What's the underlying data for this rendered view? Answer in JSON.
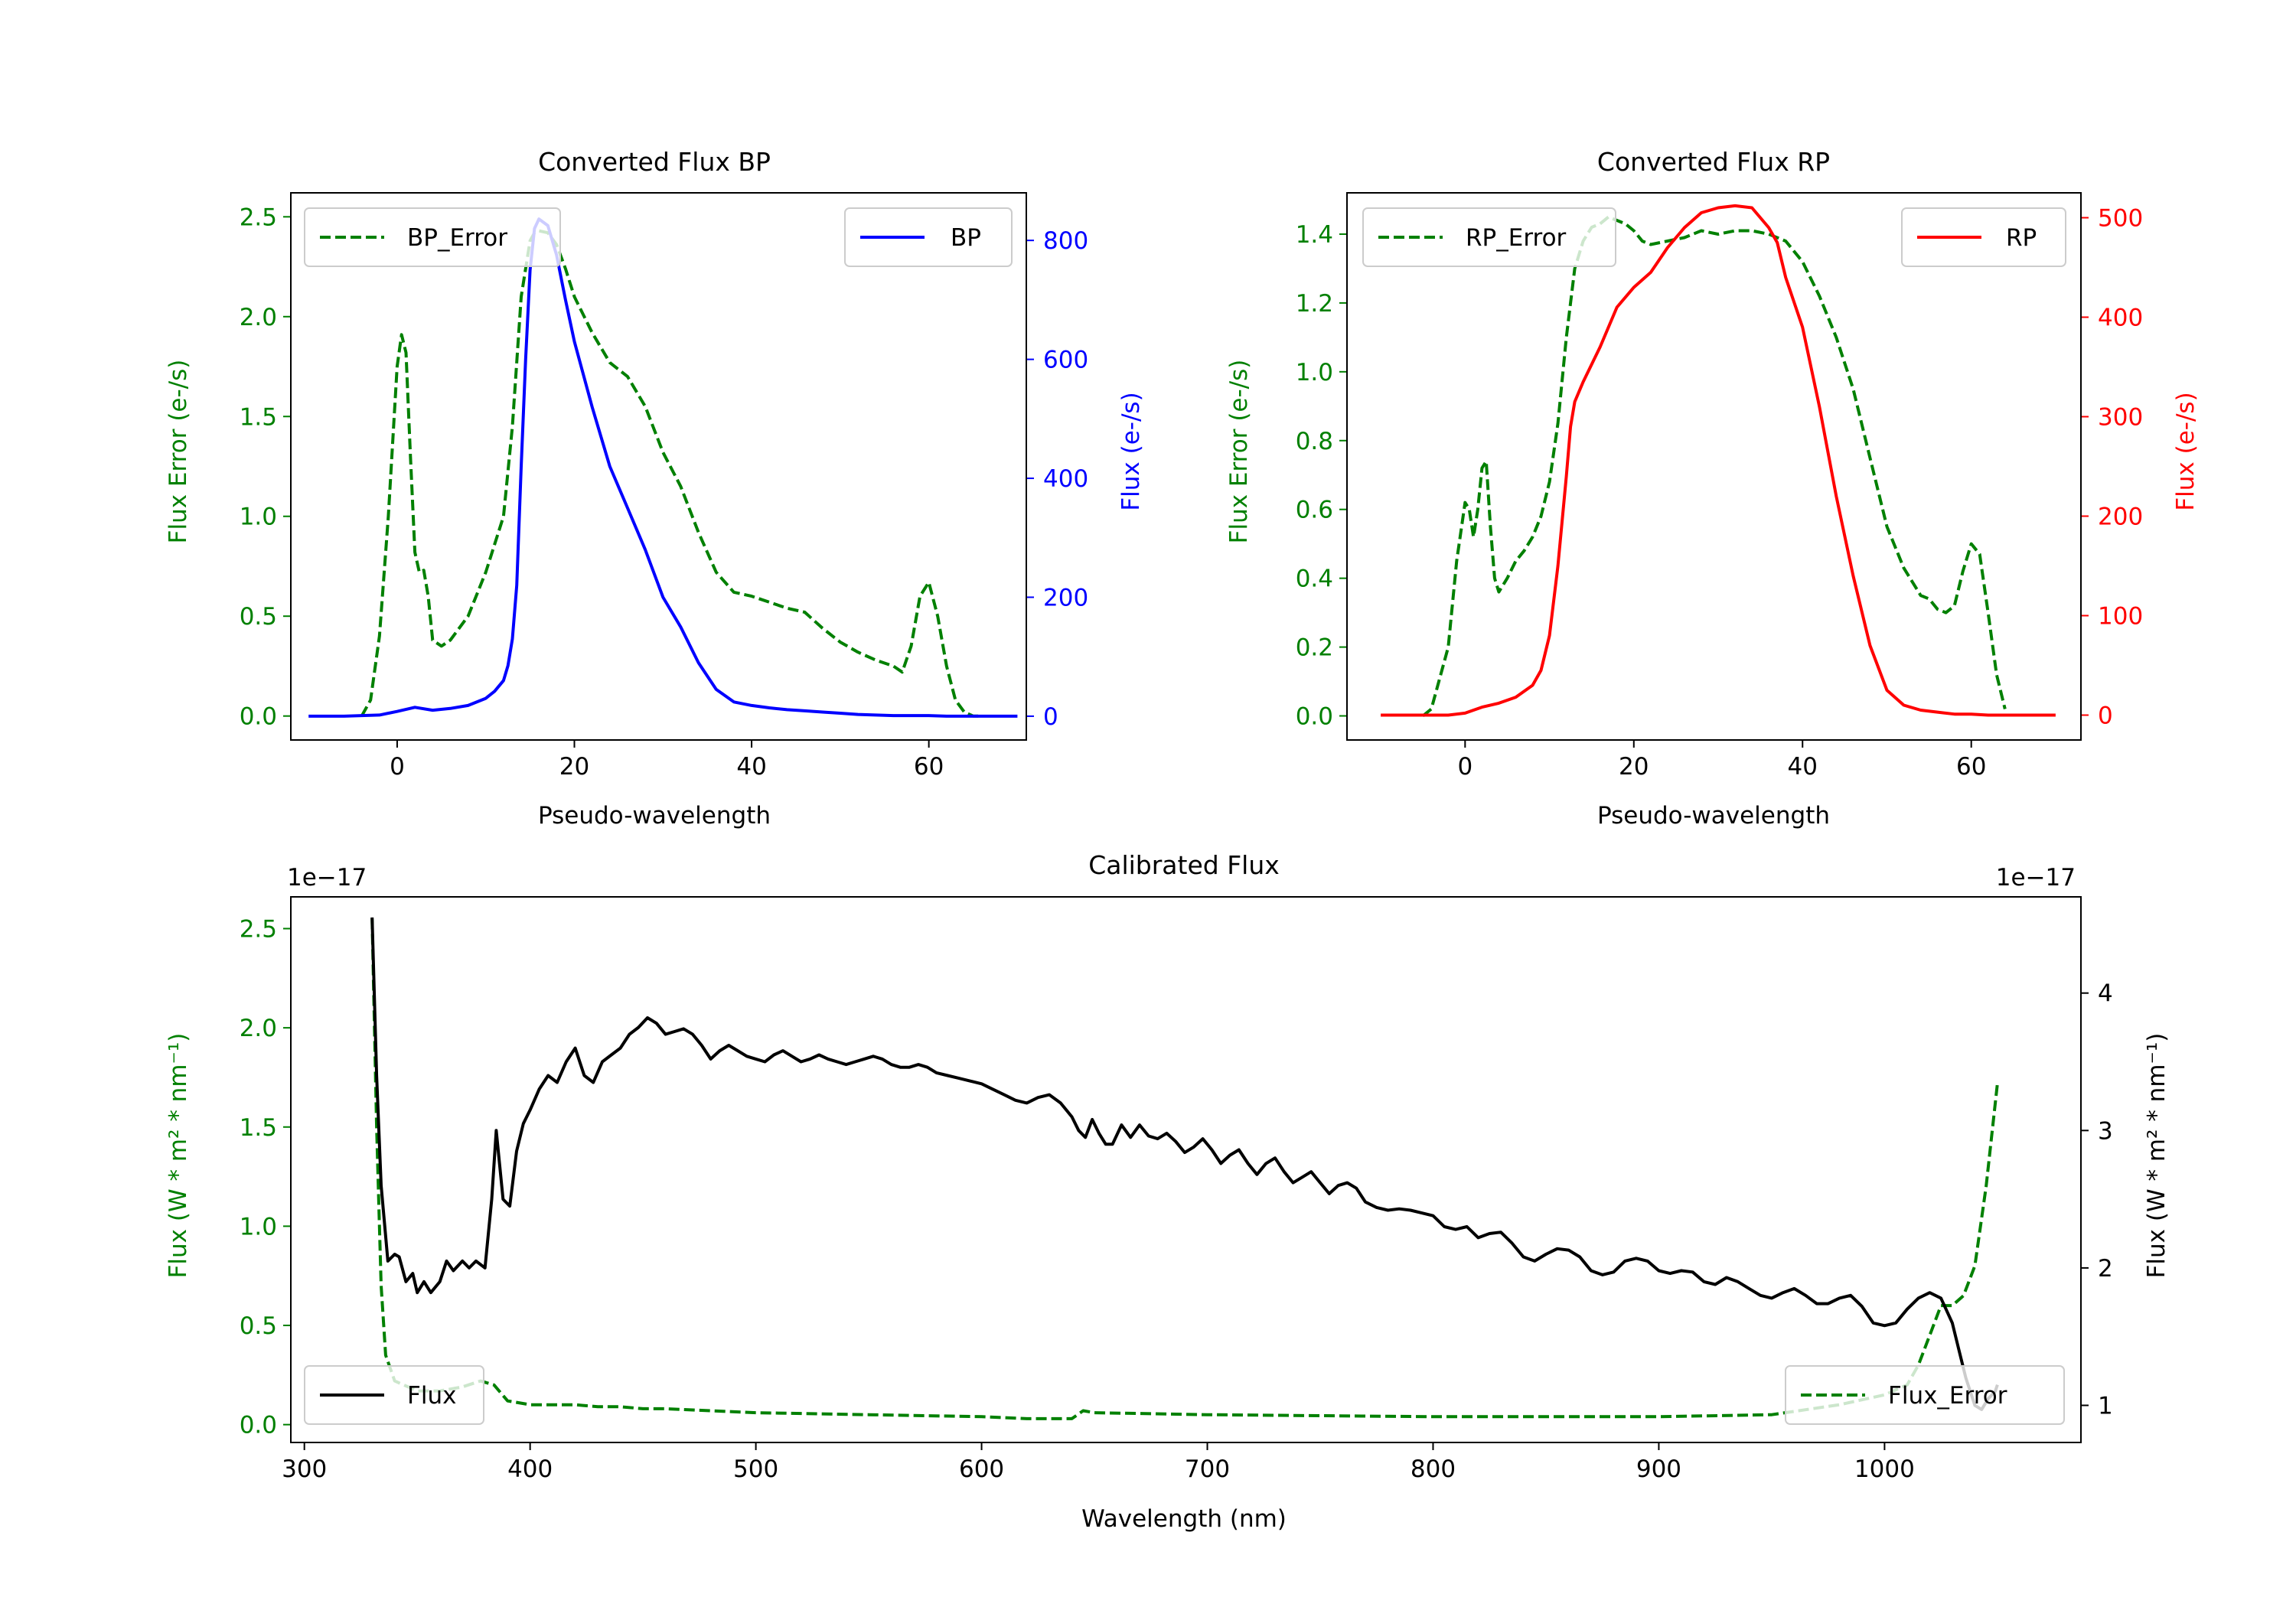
{
  "colors": {
    "bp": "#0000ff",
    "rp": "#ff0000",
    "error": "#008000",
    "flux": "#000000",
    "axis": "#000000"
  },
  "chart_data": [
    {
      "id": "bp",
      "type": "line",
      "title": "Converted Flux BP",
      "xlabel": "Pseudo-wavelength",
      "ylabel_left": "Flux Error (e-/s)",
      "ylabel_right": "Flux (e-/s)",
      "xlim": [
        -12,
        71
      ],
      "ylim_left": [
        -0.12,
        2.62
      ],
      "ylim_right": [
        -40,
        880
      ],
      "xticks": [
        0,
        20,
        40,
        60
      ],
      "xtick_labels": [
        "0",
        "20",
        "40",
        "60"
      ],
      "yticks_left": [
        0.0,
        0.5,
        1.0,
        1.5,
        2.0,
        2.5
      ],
      "ytick_labels_left": [
        "0.0",
        "0.5",
        "1.0",
        "1.5",
        "2.0",
        "2.5"
      ],
      "yticks_right": [
        0,
        200,
        400,
        600,
        800
      ],
      "ytick_labels_right": [
        "0",
        "200",
        "400",
        "600",
        "800"
      ],
      "left_color": "#008000",
      "right_color": "#0000ff",
      "series": [
        {
          "name": "BP_Error",
          "axis": "left",
          "style": "dashed",
          "color": "#008000",
          "legend": "upper-left",
          "x": [
            -4,
            -3,
            -2,
            -1,
            0,
            0.5,
            1,
            1.5,
            2,
            2.5,
            3,
            3.5,
            4,
            5,
            6,
            8,
            10,
            12,
            13,
            14,
            15,
            15.5,
            16,
            17,
            18,
            19,
            20,
            22,
            24,
            26,
            28,
            30,
            32,
            34,
            36,
            38,
            40,
            42,
            44,
            46,
            48,
            50,
            52,
            54,
            56,
            57,
            58,
            59,
            60,
            61,
            62,
            63,
            64,
            65,
            66
          ],
          "values": [
            0.0,
            0.08,
            0.4,
            1.0,
            1.75,
            1.91,
            1.82,
            1.3,
            0.82,
            0.72,
            0.73,
            0.6,
            0.38,
            0.35,
            0.38,
            0.5,
            0.72,
            1.0,
            1.45,
            2.1,
            2.38,
            2.42,
            2.43,
            2.42,
            2.36,
            2.24,
            2.1,
            1.92,
            1.77,
            1.7,
            1.55,
            1.32,
            1.15,
            0.92,
            0.72,
            0.62,
            0.6,
            0.57,
            0.54,
            0.52,
            0.44,
            0.37,
            0.32,
            0.28,
            0.25,
            0.22,
            0.35,
            0.6,
            0.67,
            0.5,
            0.25,
            0.08,
            0.02,
            0.0,
            0.0
          ]
        },
        {
          "name": "BP",
          "axis": "right",
          "style": "solid",
          "color": "#0000ff",
          "legend": "upper-right",
          "x": [
            -10,
            -6,
            -2,
            0,
            2,
            4,
            6,
            8,
            10,
            11,
            12,
            12.5,
            13,
            13.5,
            14,
            14.5,
            15,
            15.5,
            16,
            17,
            18,
            19,
            20,
            22,
            24,
            26,
            28,
            30,
            32,
            34,
            36,
            38,
            40,
            42,
            44,
            46,
            48,
            50,
            52,
            54,
            56,
            58,
            60,
            62,
            64,
            66,
            68,
            70
          ],
          "values": [
            0,
            0,
            2,
            8,
            15,
            10,
            13,
            18,
            30,
            42,
            60,
            85,
            130,
            220,
            420,
            600,
            750,
            820,
            836,
            825,
            775,
            700,
            630,
            520,
            420,
            350,
            280,
            200,
            150,
            90,
            45,
            24,
            18,
            14,
            11,
            9,
            7,
            5,
            3,
            2,
            1,
            1,
            1,
            0,
            0,
            0,
            0,
            0
          ]
        }
      ]
    },
    {
      "id": "rp",
      "type": "line",
      "title": "Converted Flux RP",
      "xlabel": "Pseudo-wavelength",
      "ylabel_left": "Flux Error (e-/s)",
      "ylabel_right": "Flux (e-/s)",
      "xlim": [
        -14,
        73
      ],
      "ylim_left": [
        -0.07,
        1.52
      ],
      "ylim_right": [
        -25,
        525
      ],
      "xticks": [
        0,
        20,
        40,
        60
      ],
      "xtick_labels": [
        "0",
        "20",
        "40",
        "60"
      ],
      "yticks_left": [
        0.0,
        0.2,
        0.4,
        0.6,
        0.8,
        1.0,
        1.2,
        1.4
      ],
      "ytick_labels_left": [
        "0.0",
        "0.2",
        "0.4",
        "0.6",
        "0.8",
        "1.0",
        "1.2",
        "1.4"
      ],
      "yticks_right": [
        0,
        100,
        200,
        300,
        400,
        500
      ],
      "ytick_labels_right": [
        "0",
        "100",
        "200",
        "300",
        "400",
        "500"
      ],
      "left_color": "#008000",
      "right_color": "#ff0000",
      "series": [
        {
          "name": "RP_Error",
          "axis": "left",
          "style": "dashed",
          "color": "#008000",
          "legend": "upper-left",
          "x": [
            -5,
            -4,
            -2,
            -1,
            0,
            0.5,
            1,
            1.5,
            2,
            2.5,
            3,
            3.5,
            4,
            5,
            6,
            7,
            8,
            9,
            10,
            11,
            12,
            13,
            14,
            15,
            16,
            17,
            18,
            19,
            20,
            21,
            22,
            24,
            26,
            28,
            30,
            32,
            34,
            36,
            38,
            40,
            42,
            44,
            46,
            48,
            50,
            52,
            54,
            55,
            56,
            57,
            58,
            59,
            60,
            61,
            62,
            63,
            64
          ],
          "values": [
            0.0,
            0.02,
            0.2,
            0.45,
            0.62,
            0.6,
            0.52,
            0.6,
            0.72,
            0.74,
            0.55,
            0.4,
            0.36,
            0.4,
            0.45,
            0.48,
            0.52,
            0.58,
            0.68,
            0.85,
            1.1,
            1.3,
            1.38,
            1.42,
            1.43,
            1.45,
            1.44,
            1.43,
            1.41,
            1.38,
            1.37,
            1.38,
            1.39,
            1.41,
            1.4,
            1.41,
            1.41,
            1.4,
            1.38,
            1.32,
            1.22,
            1.1,
            0.95,
            0.75,
            0.55,
            0.43,
            0.35,
            0.34,
            0.31,
            0.3,
            0.32,
            0.42,
            0.5,
            0.47,
            0.3,
            0.12,
            0.02
          ]
        },
        {
          "name": "RP",
          "axis": "right",
          "style": "solid",
          "color": "#ff0000",
          "legend": "upper-right",
          "x": [
            -10,
            -6,
            -2,
            0,
            2,
            4,
            6,
            8,
            9,
            10,
            11,
            12,
            12.5,
            13,
            13.5,
            14,
            16,
            18,
            20,
            22,
            24,
            26,
            28,
            30,
            32,
            34,
            36,
            37,
            38,
            40,
            42,
            44,
            46,
            48,
            50,
            52,
            54,
            56,
            58,
            60,
            62,
            64,
            66,
            68,
            70
          ],
          "values": [
            0,
            0,
            0,
            2,
            8,
            12,
            18,
            30,
            45,
            80,
            150,
            240,
            290,
            315,
            325,
            335,
            370,
            410,
            430,
            445,
            470,
            490,
            505,
            510,
            512,
            510,
            490,
            475,
            440,
            390,
            310,
            220,
            140,
            70,
            25,
            10,
            5,
            3,
            1,
            1,
            0,
            0,
            0,
            0,
            0
          ]
        }
      ]
    },
    {
      "id": "calibrated",
      "type": "line",
      "title": "Calibrated Flux",
      "xlabel": "Wavelength (nm)",
      "ylabel_left": "Flux (W * m² * nm⁻¹)",
      "ylabel_right": "Flux (W * m² * nm⁻¹)",
      "offset_left": "1e−17",
      "offset_right": "1e−17",
      "xlim": [
        294,
        1087
      ],
      "ylim_left": [
        -0.09,
        2.66
      ],
      "ylim_right": [
        0.73,
        4.7
      ],
      "xticks": [
        300,
        400,
        500,
        600,
        700,
        800,
        900,
        1000
      ],
      "xtick_labels": [
        "300",
        "400",
        "500",
        "600",
        "700",
        "800",
        "900",
        "1000"
      ],
      "yticks_left": [
        0.0,
        0.5,
        1.0,
        1.5,
        2.0,
        2.5
      ],
      "ytick_labels_left": [
        "0.0",
        "0.5",
        "1.0",
        "1.5",
        "2.0",
        "2.5"
      ],
      "yticks_right": [
        1,
        2,
        3,
        4
      ],
      "ytick_labels_right": [
        "1",
        "2",
        "3",
        "4"
      ],
      "left_color": "#008000",
      "right_color": "#000000",
      "series": [
        {
          "name": "Flux_Error",
          "axis": "left",
          "style": "dashed",
          "color": "#008000",
          "legend": "lower-right",
          "x": [
            330,
            332,
            334,
            336,
            340,
            350,
            360,
            370,
            378,
            384,
            390,
            400,
            410,
            420,
            430,
            440,
            450,
            460,
            480,
            500,
            550,
            600,
            620,
            640,
            645,
            650,
            700,
            800,
            900,
            950,
            980,
            1000,
            1010,
            1015,
            1020,
            1025,
            1030,
            1035,
            1040,
            1045,
            1050
          ],
          "values": [
            2.55,
            1.5,
            0.7,
            0.35,
            0.22,
            0.17,
            0.17,
            0.19,
            0.22,
            0.2,
            0.12,
            0.1,
            0.1,
            0.1,
            0.09,
            0.09,
            0.08,
            0.08,
            0.07,
            0.06,
            0.05,
            0.04,
            0.03,
            0.03,
            0.07,
            0.06,
            0.05,
            0.04,
            0.04,
            0.05,
            0.1,
            0.15,
            0.2,
            0.3,
            0.45,
            0.6,
            0.6,
            0.65,
            0.8,
            1.2,
            1.72
          ]
        },
        {
          "name": "Flux",
          "axis": "right",
          "style": "solid",
          "color": "#000000",
          "legend": "lower-left",
          "x": [
            330,
            332,
            334,
            337,
            340,
            342,
            345,
            348,
            350,
            353,
            356,
            360,
            363,
            366,
            370,
            373,
            376,
            380,
            383,
            385,
            388,
            391,
            394,
            397,
            400,
            404,
            408,
            412,
            416,
            420,
            424,
            428,
            432,
            436,
            440,
            444,
            448,
            452,
            456,
            460,
            464,
            468,
            472,
            476,
            480,
            484,
            488,
            492,
            496,
            500,
            504,
            508,
            512,
            516,
            520,
            524,
            528,
            532,
            536,
            540,
            544,
            548,
            552,
            556,
            560,
            564,
            568,
            572,
            576,
            580,
            585,
            590,
            595,
            600,
            605,
            610,
            615,
            620,
            625,
            630,
            635,
            640,
            643,
            646,
            649,
            652,
            655,
            658,
            662,
            666,
            670,
            674,
            678,
            682,
            686,
            690,
            694,
            698,
            702,
            706,
            710,
            714,
            718,
            722,
            726,
            730,
            734,
            738,
            742,
            746,
            750,
            754,
            758,
            762,
            766,
            770,
            775,
            780,
            785,
            790,
            795,
            800,
            805,
            810,
            815,
            820,
            825,
            830,
            835,
            840,
            845,
            850,
            855,
            860,
            865,
            870,
            875,
            880,
            885,
            890,
            895,
            900,
            905,
            910,
            915,
            920,
            925,
            930,
            935,
            940,
            945,
            950,
            955,
            960,
            965,
            970,
            975,
            980,
            985,
            990,
            995,
            1000,
            1005,
            1010,
            1015,
            1020,
            1025,
            1030,
            1033,
            1036,
            1040,
            1043,
            1046,
            1049,
            1050
          ],
          "values": [
            4.55,
            3.4,
            2.6,
            2.05,
            2.1,
            2.08,
            1.9,
            1.96,
            1.82,
            1.9,
            1.82,
            1.9,
            2.05,
            1.98,
            2.05,
            2.0,
            2.05,
            2.0,
            2.5,
            3.0,
            2.5,
            2.45,
            2.85,
            3.05,
            3.15,
            3.3,
            3.4,
            3.35,
            3.5,
            3.6,
            3.4,
            3.35,
            3.5,
            3.55,
            3.6,
            3.7,
            3.75,
            3.82,
            3.78,
            3.7,
            3.72,
            3.74,
            3.7,
            3.62,
            3.52,
            3.58,
            3.62,
            3.58,
            3.54,
            3.52,
            3.5,
            3.55,
            3.58,
            3.54,
            3.5,
            3.52,
            3.55,
            3.52,
            3.5,
            3.48,
            3.5,
            3.52,
            3.54,
            3.52,
            3.48,
            3.46,
            3.46,
            3.48,
            3.46,
            3.42,
            3.4,
            3.38,
            3.36,
            3.34,
            3.3,
            3.26,
            3.22,
            3.2,
            3.24,
            3.26,
            3.2,
            3.1,
            3.0,
            2.95,
            3.08,
            2.98,
            2.9,
            2.9,
            3.04,
            2.95,
            3.04,
            2.96,
            2.94,
            2.98,
            2.92,
            2.84,
            2.88,
            2.94,
            2.86,
            2.76,
            2.82,
            2.86,
            2.76,
            2.68,
            2.76,
            2.8,
            2.7,
            2.62,
            2.66,
            2.7,
            2.62,
            2.54,
            2.6,
            2.62,
            2.58,
            2.48,
            2.44,
            2.42,
            2.43,
            2.42,
            2.4,
            2.38,
            2.3,
            2.28,
            2.3,
            2.22,
            2.25,
            2.26,
            2.18,
            2.08,
            2.05,
            2.1,
            2.14,
            2.13,
            2.08,
            1.98,
            1.95,
            1.97,
            2.05,
            2.07,
            2.05,
            1.98,
            1.96,
            1.98,
            1.97,
            1.9,
            1.88,
            1.93,
            1.9,
            1.85,
            1.8,
            1.78,
            1.82,
            1.85,
            1.8,
            1.74,
            1.74,
            1.78,
            1.8,
            1.72,
            1.6,
            1.58,
            1.6,
            1.7,
            1.78,
            1.82,
            1.78,
            1.6,
            1.4,
            1.2,
            1.0,
            0.97,
            1.05,
            1.1,
            1.15
          ]
        }
      ]
    }
  ]
}
